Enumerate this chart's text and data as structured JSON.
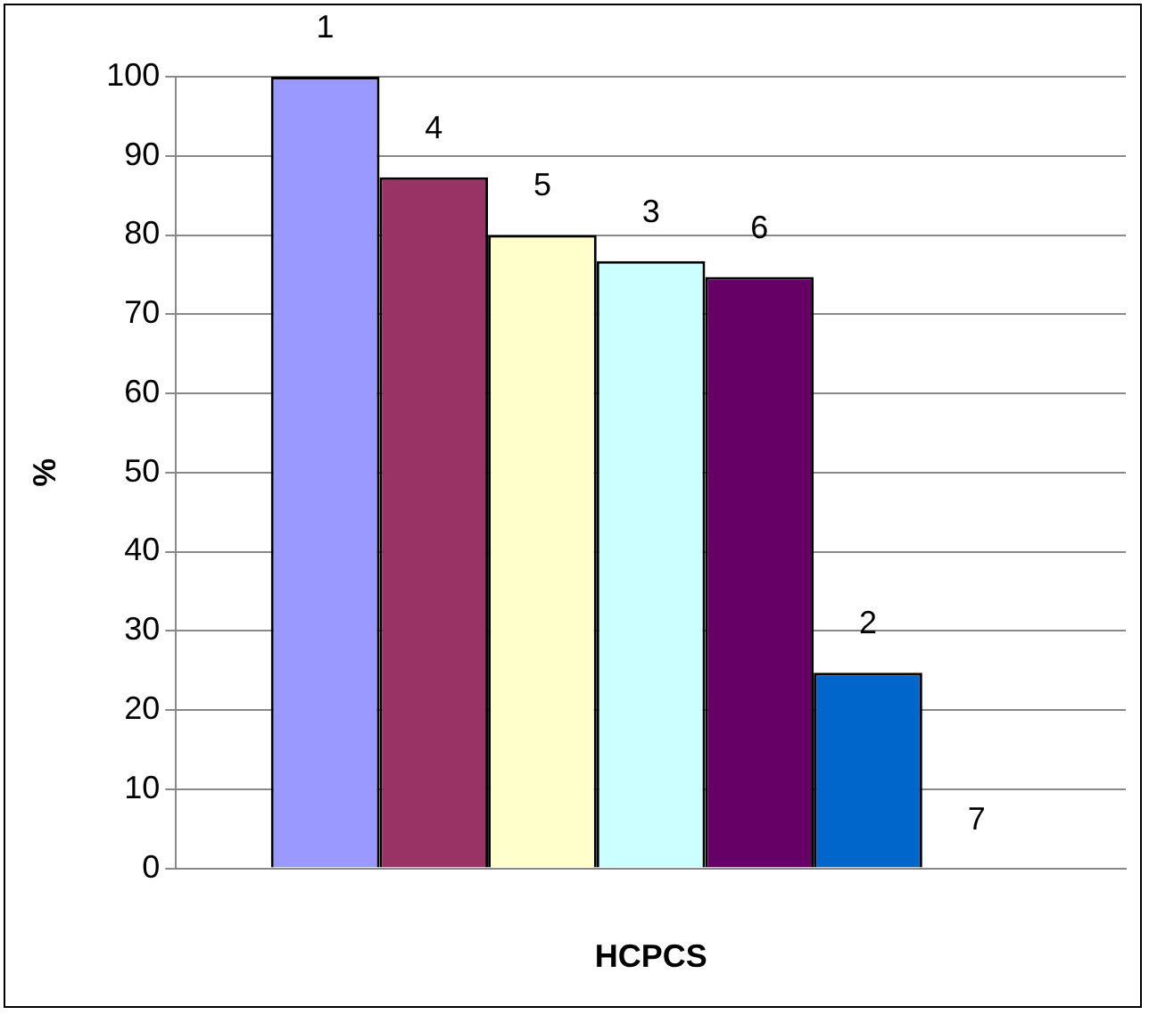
{
  "chart_data": {
    "type": "bar",
    "xlabel": "HCPCS",
    "ylabel": "%",
    "categories": [
      null
    ],
    "series": [
      {
        "name": "1",
        "color": "#9999ff",
        "values": [
          100
        ]
      },
      {
        "name": "4",
        "color": "#993366",
        "values": [
          87.3
        ]
      },
      {
        "name": "5",
        "color": "#ffffcc",
        "values": [
          80
        ]
      },
      {
        "name": "3",
        "color": "#ccffff",
        "values": [
          76.7
        ]
      },
      {
        "name": "6",
        "color": "#660066",
        "values": [
          74.7
        ]
      },
      {
        "name": "2",
        "color": "#0066cc",
        "values": [
          24.7
        ]
      },
      {
        "name": "7",
        "values": [
          0
        ]
      }
    ],
    "ylim": [
      0,
      100
    ],
    "yticks": [
      0,
      10,
      20,
      30,
      40,
      50,
      60,
      70,
      80,
      90,
      100
    ],
    "grid": "y",
    "legend": false
  }
}
